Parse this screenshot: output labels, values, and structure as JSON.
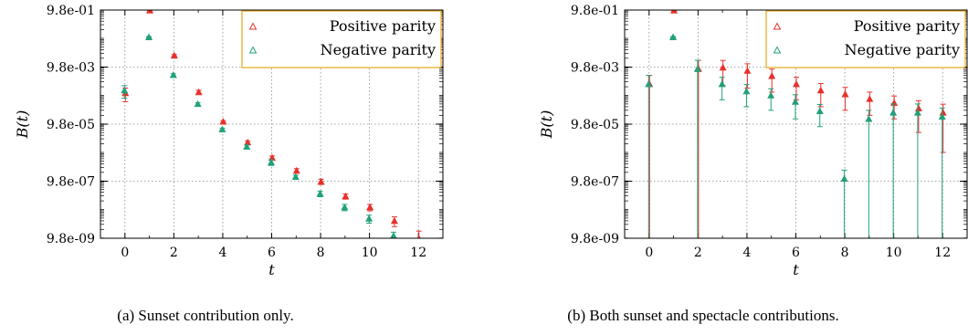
{
  "panels": [
    {
      "caption": "(a)  Sunset contribution only.",
      "chart_data": {
        "type": "scatter",
        "title": "",
        "xlabel": "t",
        "ylabel": "B(t)",
        "xlim": [
          -1,
          13
        ],
        "xticks": [
          0,
          2,
          4,
          6,
          8,
          10,
          12
        ],
        "yscale": "log",
        "ylim": [
          9.8e-09,
          0.98
        ],
        "yticks": [
          9.8e-09,
          9.8e-07,
          9.8e-05,
          0.0098,
          0.98
        ],
        "ytick_labels": [
          "9.8e-09",
          "9.8e-07",
          "9.8e-05",
          "9.8e-03",
          "9.8e-01"
        ],
        "grid": true,
        "legend_position": "top-right",
        "series": [
          {
            "name": "Positive parity",
            "color": "#e8302a",
            "marker": "triangle",
            "x": [
              0,
              1,
              2,
              3,
              4,
              5,
              6,
              7,
              8,
              9,
              10,
              11,
              12
            ],
            "y": [
              0.0012,
              0.95,
              0.025,
              0.0013,
              0.00012,
              2.25e-05,
              6.5e-06,
              2.3e-06,
              9.5e-07,
              2.9e-07,
              1.2e-07,
              4e-08,
              9.5e-09
            ],
            "err": [
              0.0006,
              0.02,
              0.002,
              0.0002,
              1e-05,
              3e-06,
              1e-06,
              4e-07,
              2e-07,
              6e-08,
              3e-08,
              1.5e-08,
              8e-09
            ]
          },
          {
            "name": "Negative parity",
            "color": "#22a07a",
            "marker": "triangle",
            "x": [
              0,
              1,
              2,
              3,
              4,
              5,
              6,
              7,
              8,
              9,
              10,
              11
            ],
            "y": [
              0.0015,
              0.11,
              0.0052,
              0.0005,
              6.5e-05,
              1.6e-05,
              4.5e-06,
              1.4e-06,
              3.6e-07,
              1.2e-07,
              4.8e-08,
              1.2e-08
            ],
            "err": [
              0.0007,
              0.005,
              0.0005,
              5e-05,
              6e-06,
              2e-06,
              1e-06,
              2e-07,
              8e-08,
              3e-08,
              1.5e-08,
              4e-09
            ]
          }
        ]
      }
    },
    {
      "caption": "(b)  Both sunset and spectacle contributions.",
      "chart_data": {
        "type": "scatter",
        "title": "",
        "xlabel": "t",
        "ylabel": "B(t)",
        "xlim": [
          -1,
          13
        ],
        "xticks": [
          0,
          2,
          4,
          6,
          8,
          10,
          12
        ],
        "yscale": "log",
        "ylim": [
          9.8e-09,
          0.98
        ],
        "yticks": [
          9.8e-09,
          9.8e-07,
          9.8e-05,
          0.0098,
          0.98
        ],
        "ytick_labels": [
          "9.8e-09",
          "9.8e-07",
          "9.8e-05",
          "9.8e-03",
          "9.8e-01"
        ],
        "grid": true,
        "legend_position": "top-right",
        "series": [
          {
            "name": "Positive parity",
            "color": "#e8302a",
            "marker": "triangle",
            "x": [
              0,
              1,
              2,
              3,
              4,
              5,
              6,
              7,
              8,
              9,
              10,
              11,
              12
            ],
            "y": [
              0.0025,
              0.95,
              0.0085,
              0.0095,
              0.0073,
              0.0048,
              0.0025,
              0.0015,
              0.0011,
              0.00075,
              0.00055,
              0.00035,
              0.00025
            ],
            "err": [
              0.0025,
              0.02,
              0.0085,
              0.0073,
              0.0055,
              0.0035,
              0.0018,
              0.0011,
              0.0008,
              0.00055,
              0.0004,
              0.0003,
              0.00024
            ]
          },
          {
            "name": "Negative parity",
            "color": "#22a07a",
            "marker": "triangle",
            "x": [
              0,
              1,
              2,
              3,
              4,
              5,
              6,
              7,
              8,
              9,
              10,
              11,
              12
            ],
            "y": [
              0.0025,
              0.11,
              0.0085,
              0.0025,
              0.0014,
              0.001,
              0.0006,
              0.00028,
              1.2e-06,
              0.00015,
              0.00025,
              0.00025,
              0.00018
            ],
            "err": [
              0.0025,
              0.005,
              0.0085,
              0.0018,
              0.001,
              0.0007,
              0.00045,
              0.0002,
              1.2e-06,
              0.00015,
              0.00025,
              0.00025,
              0.00018
            ]
          }
        ]
      }
    }
  ]
}
